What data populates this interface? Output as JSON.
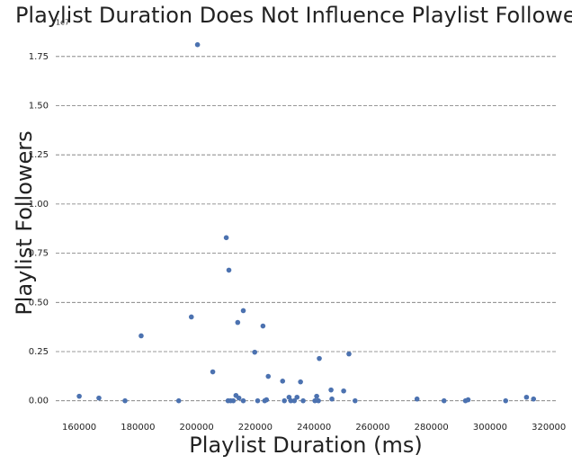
{
  "chart_data": {
    "type": "scatter",
    "title": "Playlist Duration Does Not Influence Playlist Followers",
    "x_label": "Playlist Duration (ms)",
    "y_label": "Playlist Followers",
    "y_offset_label": "1e7",
    "color": "#4c72b0",
    "grid": true,
    "x": [
      160000,
      166700,
      175600,
      181100,
      193900,
      198200,
      200300,
      205500,
      210100,
      211000,
      210700,
      211600,
      212500,
      213400,
      214000,
      214400,
      215900,
      215900,
      219800,
      220800,
      222600,
      223200,
      223800,
      224400,
      229300,
      229900,
      231500,
      232100,
      233300,
      234200,
      235400,
      236300,
      240300,
      240900,
      241500,
      241800,
      245800,
      246100,
      250100,
      251900,
      254000,
      275100,
      284300,
      291600,
      292500,
      305300,
      312400,
      314800
    ],
    "values": [
      0.023,
      0.014,
      0,
      0.33,
      0,
      0.426,
      1.81,
      0.147,
      0.829,
      0.664,
      0,
      0,
      0,
      0.027,
      0.398,
      0.014,
      0.458,
      0,
      0.247,
      0,
      0.38,
      0,
      0.005,
      0.124,
      0.1,
      0,
      0.018,
      0,
      0,
      0.018,
      0.096,
      0,
      0,
      0.023,
      0,
      0.215,
      0.055,
      0.009,
      0.05,
      0.238,
      0,
      0.009,
      0,
      0,
      0.005,
      0,
      0.018,
      0.009
    ],
    "xlim": [
      152000,
      323000
    ],
    "xticks": [
      160000,
      180000,
      200000,
      220000,
      240000,
      260000,
      280000,
      300000,
      320000
    ],
    "ylim": [
      -0.07,
      1.9
    ],
    "yticks": [
      {
        "value": 0,
        "label": "0.00"
      },
      {
        "value": 0.25,
        "label": "0.25"
      },
      {
        "value": 0.5,
        "label": "0.50"
      },
      {
        "value": 0.75,
        "label": "0.75"
      },
      {
        "value": 1,
        "label": "1.00"
      },
      {
        "value": 1.25,
        "label": "1.25"
      },
      {
        "value": 1.5,
        "label": "1.50"
      },
      {
        "value": 1.75,
        "label": "1.75"
      }
    ]
  }
}
